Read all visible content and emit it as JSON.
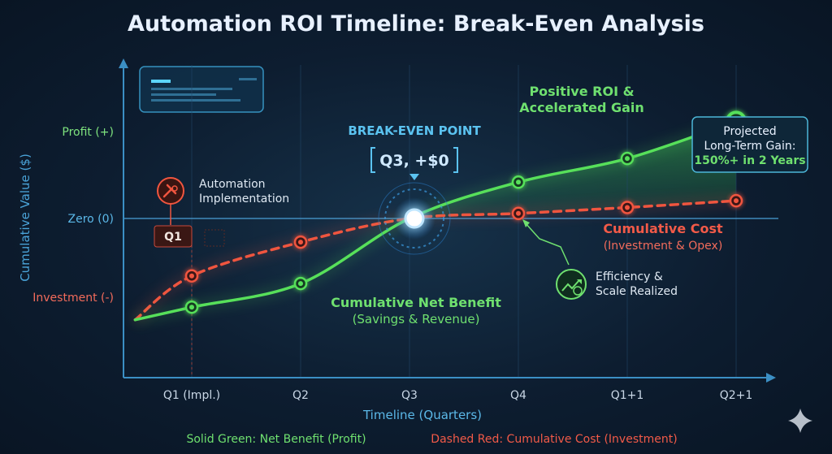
{
  "chart_data": {
    "type": "line",
    "title": "Automation ROI Timeline: Break-Even Analysis",
    "xlabel": "Timeline (Quarters)",
    "ylabel": "Cumulative Value ($)",
    "categories": [
      "Q1 (Impl.)",
      "Q2",
      "Q3",
      "Q4",
      "Q1+1",
      "Q2+1"
    ],
    "y_ticks": [
      "Profit (+)",
      "Zero (0)",
      "Investment (-)"
    ],
    "ylim": [
      -1.3,
      1.3
    ],
    "series": [
      {
        "name": "Cumulative Net Benefit",
        "style": "solid",
        "color": "#57e05a",
        "x": [
          -0.52,
          0,
          1,
          2,
          3,
          4,
          5
        ],
        "y": [
          -1.2,
          -1.05,
          -0.77,
          0,
          0.43,
          0.71,
          1.15
        ]
      },
      {
        "name": "Cumulative Cost",
        "style": "dashed",
        "color": "#f0553f",
        "x": [
          -0.52,
          0,
          1,
          2,
          3,
          4,
          5
        ],
        "y": [
          -1.2,
          -0.68,
          -0.28,
          0,
          0.06,
          0.13,
          0.21
        ]
      }
    ],
    "grid": true,
    "annotations": {
      "break_even_label": "BREAK-EVEN POINT",
      "break_even_value": "Q3, +$0",
      "automation_line1": "Automation",
      "automation_line2": "Implementation",
      "q1_tag": "Q1",
      "positive_line1": "Positive ROI &",
      "positive_line2": "Accelerated Gain",
      "gain_line1": "Projected",
      "gain_line2": "Long-Term Gain:",
      "gain_line3": "150%+ in 2 Years",
      "net_benefit_title": "Cumulative Net Benefit",
      "net_benefit_sub": "(Savings & Revenue)",
      "cost_title": "Cumulative Cost",
      "cost_sub": "(Investment & Opex)",
      "efficiency_line1": "Efficiency &",
      "efficiency_line2": "Scale Realized"
    },
    "legend": {
      "green": "Solid Green: Net Benefit (Profit)",
      "red": "Dashed Red: Cumulative Cost (Investment)"
    }
  },
  "colors": {
    "green": "#57e05a",
    "red": "#f0553f",
    "blue": "#5bb8e8",
    "background": "#0d1d30"
  },
  "icons": {
    "automation": "wrench-gear-icon",
    "efficiency": "growth-dollar-icon",
    "dashboard": "monitor-icon",
    "watermark": "sparkle-icon"
  }
}
